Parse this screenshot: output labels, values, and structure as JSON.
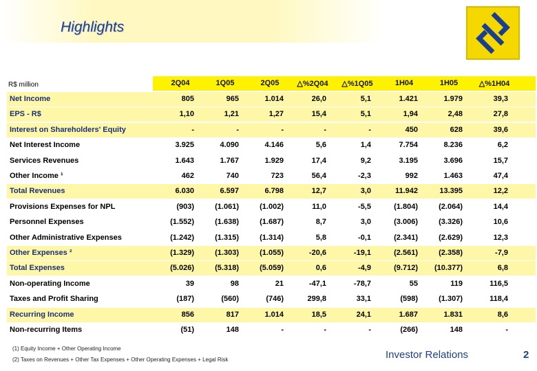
{
  "header": {
    "title": "Highlights",
    "unit": "R$ million"
  },
  "table": {
    "columns": [
      "2Q04",
      "1Q05",
      "2Q05",
      "△%2Q04",
      "△%1Q05",
      "1H04",
      "1H05",
      "△%1H04"
    ],
    "rows": [
      [
        "Net Income",
        "805",
        "965",
        "1.014",
        "26,0",
        "5,1",
        "1.421",
        "1.979",
        "39,3"
      ],
      [
        "EPS - R$",
        "1,10",
        "1,21",
        "1,27",
        "15,4",
        "5,1",
        "1,94",
        "2,48",
        "27,8"
      ],
      [
        "Interest on Shareholders' Equity",
        "-",
        "-",
        "-",
        "-",
        "-",
        "450",
        "628",
        "39,6"
      ],
      [
        "Net Interest Income",
        "3.925",
        "4.090",
        "4.146",
        "5,6",
        "1,4",
        "7.754",
        "8.236",
        "6,2"
      ],
      [
        "Services Revenues",
        "1.643",
        "1.767",
        "1.929",
        "17,4",
        "9,2",
        "3.195",
        "3.696",
        "15,7"
      ],
      [
        "Other Income ¹",
        "462",
        "740",
        "723",
        "56,4",
        "-2,3",
        "992",
        "1.463",
        "47,4"
      ],
      [
        "Total Revenues",
        "6.030",
        "6.597",
        "6.798",
        "12,7",
        "3,0",
        "11.942",
        "13.395",
        "12,2"
      ],
      [
        "Provisions Expenses for NPL",
        "(903)",
        "(1.061)",
        "(1.002)",
        "11,0",
        "-5,5",
        "(1.804)",
        "(2.064)",
        "14,4"
      ],
      [
        "Personnel Expenses",
        "(1.552)",
        "(1.638)",
        "(1.687)",
        "8,7",
        "3,0",
        "(3.006)",
        "(3.326)",
        "10,6"
      ],
      [
        "Other Administrative Expenses",
        "(1.242)",
        "(1.315)",
        "(1.314)",
        "5,8",
        "-0,1",
        "(2.341)",
        "(2.629)",
        "12,3"
      ],
      [
        "Other Expenses ²",
        "(1.329)",
        "(1.303)",
        "(1.055)",
        "-20,6",
        "-19,1",
        "(2.561)",
        "(2.358)",
        "-7,9"
      ],
      [
        "Total Expenses",
        "(5.026)",
        "(5.318)",
        "(5.059)",
        "0,6",
        "-4,9",
        "(9.712)",
        "(10.377)",
        "6,8"
      ],
      [
        "Non-operating Income",
        "39",
        "98",
        "21",
        "-47,1",
        "-78,7",
        "55",
        "119",
        "116,5"
      ],
      [
        "Taxes and Profit Sharing",
        "(187)",
        "(560)",
        "(746)",
        "299,8",
        "33,1",
        "(598)",
        "(1.307)",
        "118,4"
      ],
      [
        "Recurring Income",
        "856",
        "817",
        "1.014",
        "18,5",
        "24,1",
        "1.687",
        "1.831",
        "8,6"
      ],
      [
        "Non-recurring Items",
        "(51)",
        "148",
        "-",
        "-",
        "-",
        "(266)",
        "148",
        "-"
      ]
    ]
  },
  "footer": {
    "notes": [
      "(1) Equity Income + Other Operating Income",
      "(2) Taxes on Revenues + Other Tax Expenses + Other Operating Expenses + Legal Risk"
    ],
    "brand": "Investor Relations",
    "page": "2"
  }
}
